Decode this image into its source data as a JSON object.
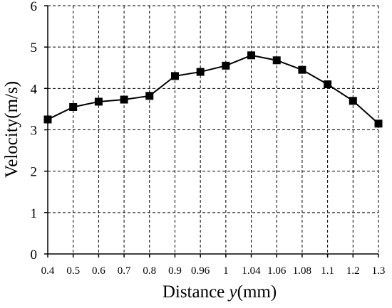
{
  "chart_data": {
    "type": "line",
    "title": "",
    "xlabel_prefix": "Distance ",
    "xlabel_var": "y",
    "xlabel_suffix": "(mm)",
    "ylabel": "Velocity(m/s)",
    "categories": [
      "0.4",
      "0.5",
      "0.6",
      "0.7",
      "0.8",
      "0.9",
      "0.96",
      "1",
      "1.04",
      "1.06",
      "1.08",
      "1.1",
      "1.2",
      "1.3"
    ],
    "series": [
      {
        "values": [
          3.25,
          3.55,
          3.68,
          3.73,
          3.82,
          4.3,
          4.4,
          4.55,
          4.8,
          4.68,
          4.45,
          4.1,
          3.7,
          3.15
        ]
      }
    ],
    "yticks": [
      "0",
      "1",
      "2",
      "3",
      "4",
      "5",
      "6"
    ],
    "ylim": [
      0,
      6
    ],
    "grid": true,
    "grid_style": "dashed",
    "legend": "none",
    "colors": {
      "line": "#000000",
      "marker": "#000000",
      "grid": "#000000",
      "axis": "#000000"
    }
  }
}
